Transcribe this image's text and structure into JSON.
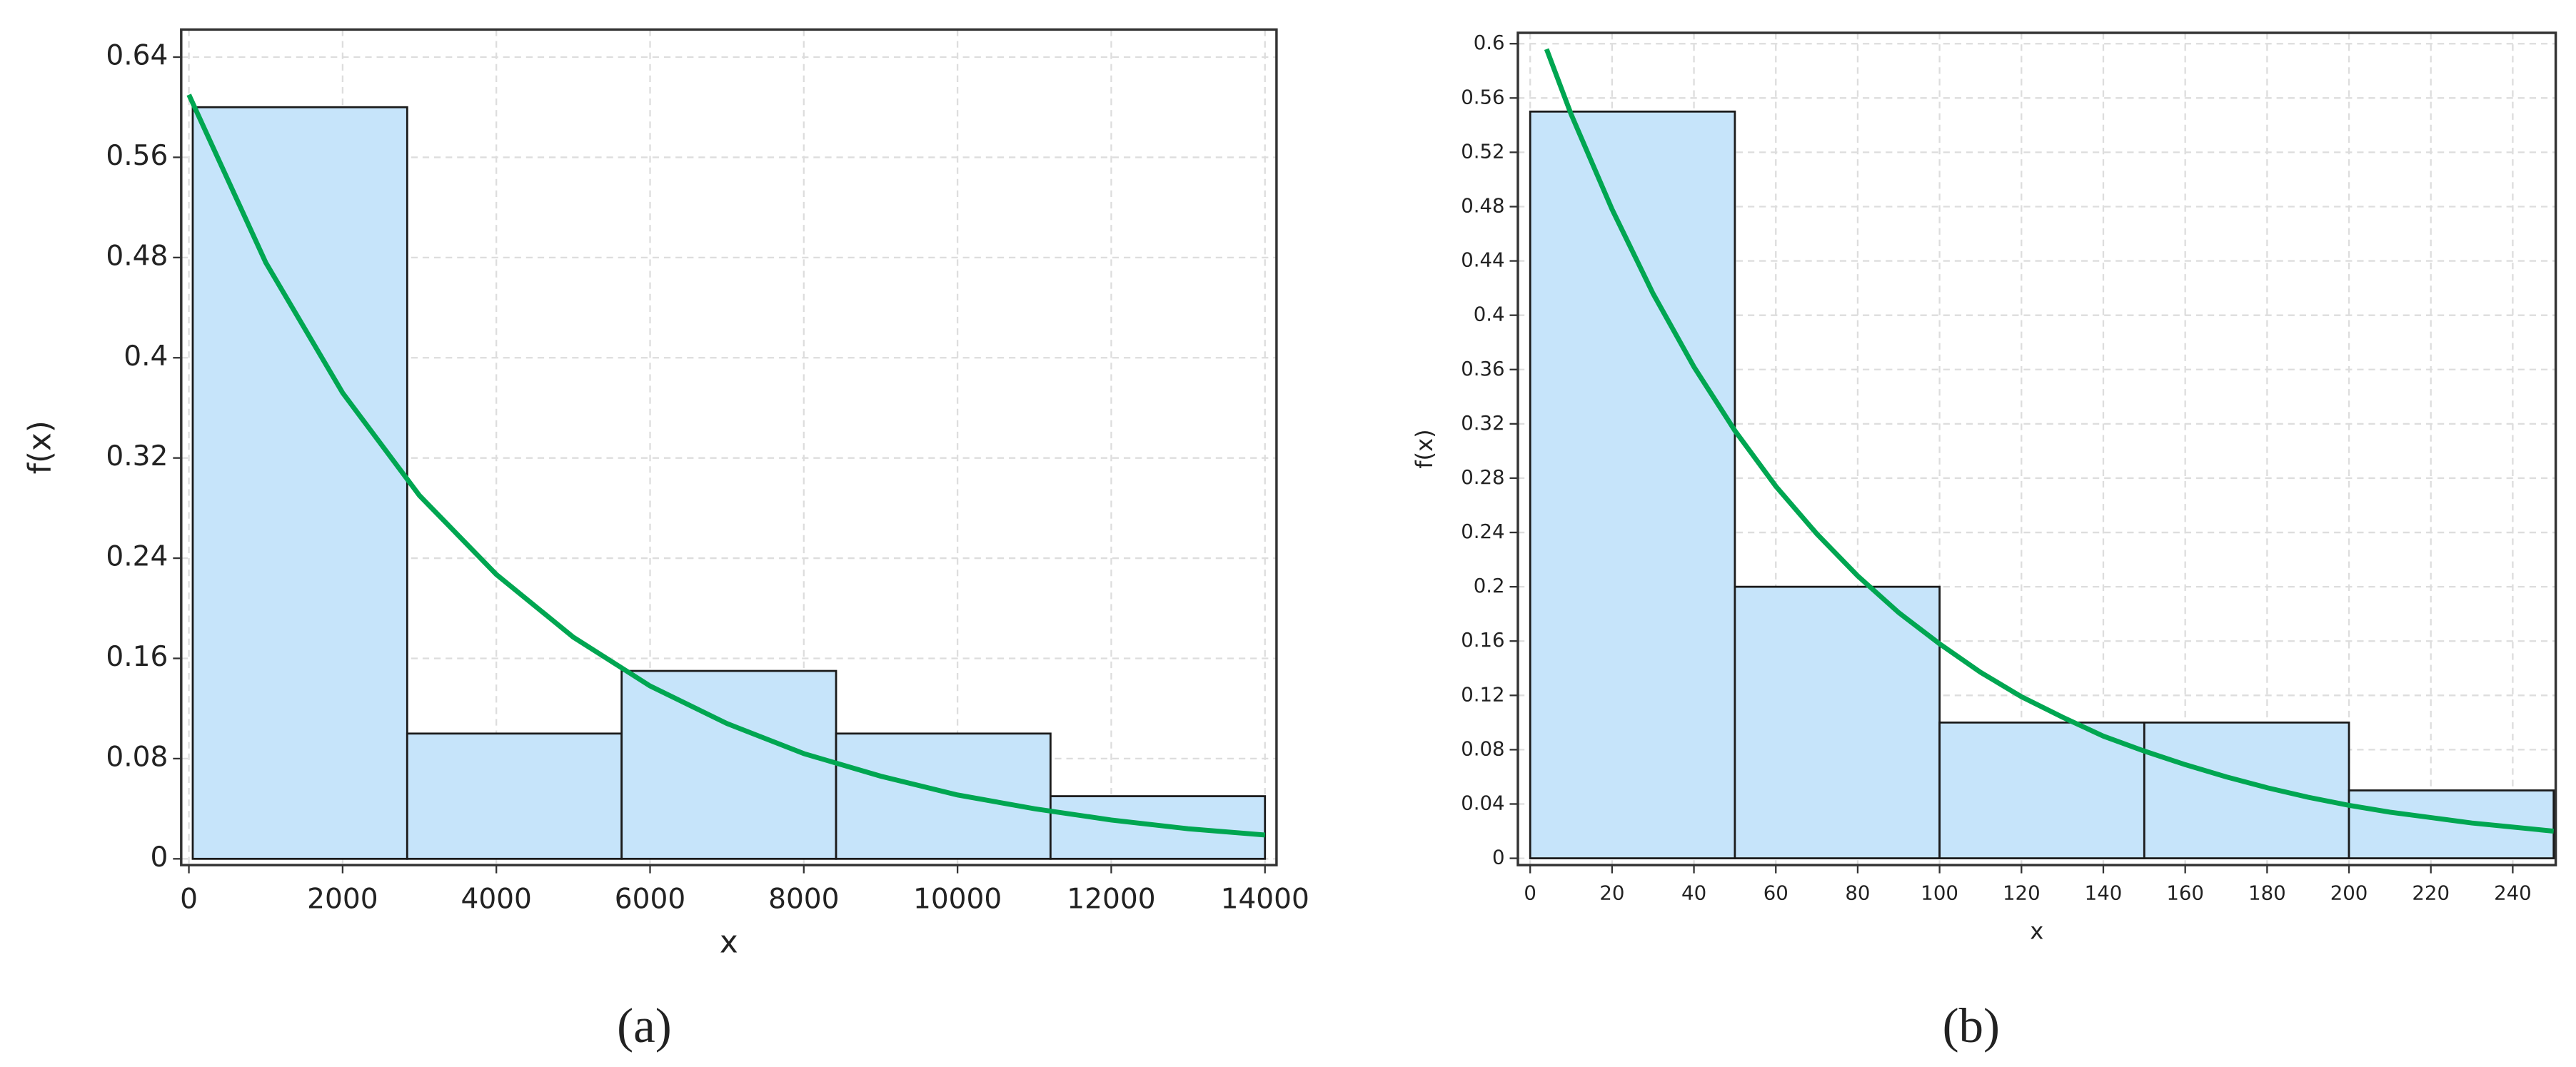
{
  "chart_data": [
    {
      "type": "histogram",
      "caption": "(a)",
      "xlabel": "x",
      "ylabel": "f(x)",
      "bins": [
        50,
        2840,
        5630,
        8420,
        11210,
        14000
      ],
      "values": [
        0.6,
        0.1,
        0.15,
        0.1,
        0.05
      ],
      "color": "#c6e4fa",
      "edgecolor": "#1a1a1a",
      "curve": {
        "color": "#00a651",
        "x": [
          0,
          1000,
          2000,
          3000,
          4000,
          5000,
          6000,
          7000,
          8000,
          9000,
          10000,
          11000,
          12000,
          13000,
          14000
        ],
        "values": [
          0.61,
          0.476,
          0.372,
          0.29,
          0.227,
          0.177,
          0.138,
          0.108,
          0.084,
          0.066,
          0.051,
          0.04,
          0.031,
          0.024,
          0.019
        ]
      },
      "xlim": [
        -100,
        14150
      ],
      "ylim": [
        -0.005,
        0.662
      ],
      "xticks": [
        0,
        2000,
        4000,
        6000,
        8000,
        10000,
        12000,
        14000
      ],
      "yticks": [
        0,
        0.08,
        0.16,
        0.24,
        0.32,
        0.4,
        0.48,
        0.56,
        0.64
      ],
      "grid": true
    },
    {
      "type": "histogram",
      "caption": "(b)",
      "xlabel": "x",
      "ylabel": "f(x)",
      "bins": [
        0,
        50,
        100,
        150,
        200,
        250
      ],
      "values": [
        0.55,
        0.2,
        0.1,
        0.1,
        0.05
      ],
      "color": "#c6e4fa",
      "edgecolor": "#1a1a1a",
      "curve": {
        "color": "#00a651",
        "x": [
          4,
          10,
          20,
          30,
          40,
          50,
          60,
          70,
          80,
          90,
          100,
          110,
          120,
          130,
          140,
          150,
          160,
          170,
          180,
          190,
          200,
          210,
          220,
          230,
          240,
          250
        ],
        "values": [
          0.596,
          0.548,
          0.478,
          0.416,
          0.362,
          0.315,
          0.274,
          0.239,
          0.208,
          0.181,
          0.158,
          0.137,
          0.119,
          0.104,
          0.09,
          0.079,
          0.069,
          0.06,
          0.052,
          0.045,
          0.039,
          0.034,
          0.03,
          0.026,
          0.023,
          0.02
        ]
      },
      "xlim": [
        -3,
        250.5
      ],
      "ylim": [
        -0.005,
        0.608
      ],
      "xticks": [
        0,
        20,
        40,
        60,
        80,
        100,
        120,
        140,
        160,
        180,
        200,
        220,
        240
      ],
      "yticks": [
        0,
        0.04,
        0.08,
        0.12,
        0.16,
        0.2,
        0.24,
        0.28,
        0.32,
        0.36,
        0.4,
        0.44,
        0.48,
        0.52,
        0.56,
        0.6
      ],
      "grid": true
    }
  ]
}
